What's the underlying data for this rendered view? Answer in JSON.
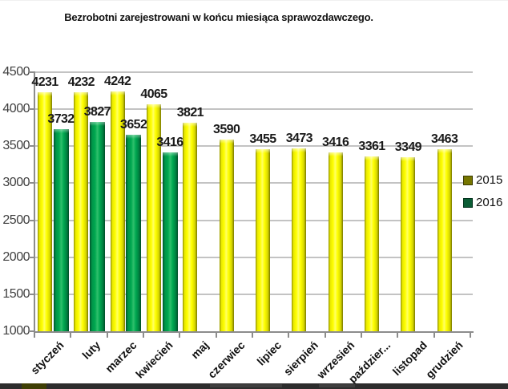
{
  "title": "Bezrobotni zarejestrowani w końcu miesiąca sprawozdawczego.",
  "chart_data": {
    "type": "bar",
    "title": "Bezrobotni zarejestrowani w końcu miesiąca sprawozdawczego.",
    "categories": [
      "styczeń",
      "luty",
      "marzec",
      "kwiecień",
      "maj",
      "czerwiec",
      "lipiec",
      "sierpień",
      "wrzesień",
      "paździer...",
      "listopad",
      "grudzień"
    ],
    "series": [
      {
        "name": "2015",
        "color": "#ffff00",
        "legend_color": "#767600",
        "values": [
          4231,
          4232,
          4242,
          4065,
          3821,
          3590,
          3455,
          3473,
          3416,
          3361,
          3349,
          3463
        ]
      },
      {
        "name": "2016",
        "color": "#00a850",
        "legend_color": "#0b5d35",
        "values": [
          3732,
          3827,
          3652,
          3416,
          null,
          null,
          null,
          null,
          null,
          null,
          null,
          null
        ]
      }
    ],
    "ylim": [
      1000,
      4500
    ],
    "ytick_step": 500,
    "yticks": [
      "4500",
      "4000",
      "3500",
      "3000",
      "2500",
      "2000",
      "1500",
      "1000"
    ],
    "grid": true,
    "legend_position": "right",
    "data_labels": true,
    "xlabel": "",
    "ylabel": ""
  }
}
